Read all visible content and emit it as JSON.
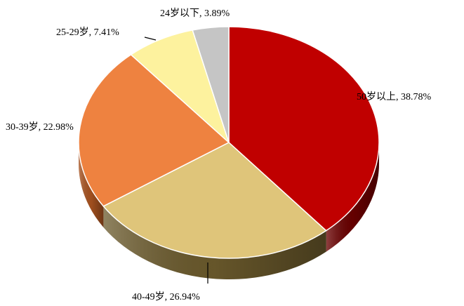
{
  "chart_data": {
    "type": "pie",
    "title": "",
    "slices": [
      {
        "label": "50岁以上",
        "value": 38.78,
        "text": "50岁以上, 38.78%",
        "color": "#c00000",
        "side": "#6a0000"
      },
      {
        "label": "40-49岁",
        "value": 26.94,
        "text": "40-49岁, 26.94%",
        "color": "#dfc57a",
        "side": "#6b5a2c"
      },
      {
        "label": "30-39岁",
        "value": 22.98,
        "text": "30-39岁, 22.98%",
        "color": "#ee8240",
        "side": "#a85320"
      },
      {
        "label": "25-29岁",
        "value": 7.41,
        "text": "25-29岁, 7.41%",
        "color": "#fdf29e",
        "side": "#b8ad60"
      },
      {
        "label": "24岁以下",
        "value": 3.89,
        "text": "24岁以下, 3.89%",
        "color": "#c5c5c5",
        "side": "#8a8a8a"
      }
    ],
    "legend": "none",
    "style": "3d-pie"
  }
}
